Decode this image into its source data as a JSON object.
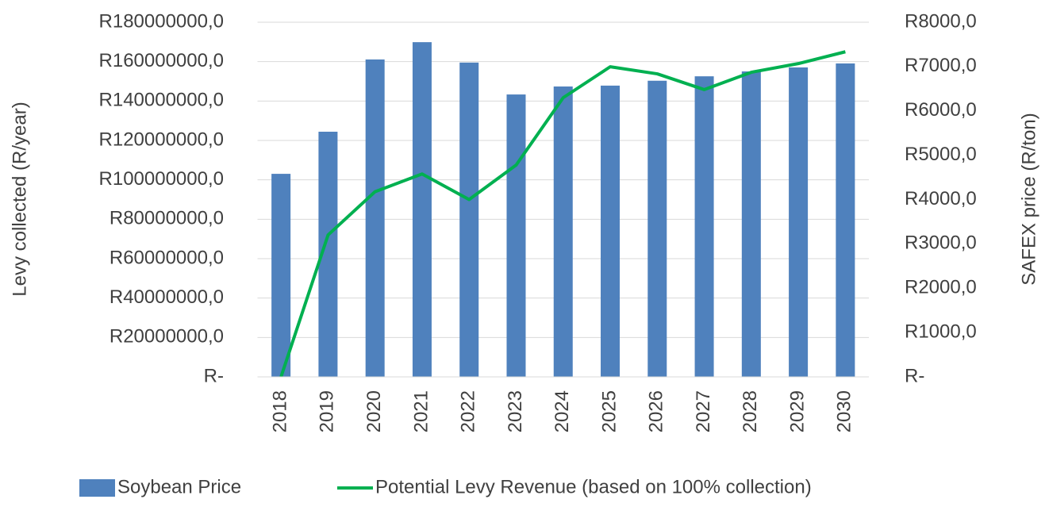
{
  "chart_data": {
    "type": "bar-line",
    "y_label": "Levy collected (R/year)",
    "y2_label": "SAFEX price (R/ton)",
    "categories": [
      "2018",
      "2019",
      "2020",
      "2021",
      "2022",
      "2023",
      "2024",
      "2025",
      "2026",
      "2027",
      "2028",
      "2029",
      "2030"
    ],
    "series": [
      {
        "name": "Soybean Price",
        "type": "bar",
        "axis": "y2",
        "color": "#4f81bd",
        "values": [
          4580,
          5530,
          7160,
          7550,
          7090,
          6370,
          6550,
          6570,
          6680,
          6780,
          6890,
          6980,
          7070
        ]
      },
      {
        "name": "Potential Levy Revenue (based on 100% collection)",
        "type": "line",
        "axis": "y",
        "color": "#00b050",
        "values": [
          0,
          72000000,
          94000000,
          103000000,
          90000000,
          107500000,
          141700000,
          157400000,
          153800000,
          145800000,
          154600000,
          159000000,
          165000000
        ]
      }
    ],
    "ylim": [
      0,
      180000000
    ],
    "yticks": [
      {
        "value": 0,
        "label": "R-"
      },
      {
        "value": 20000000,
        "label": "R20000000,0"
      },
      {
        "value": 40000000,
        "label": "R40000000,0"
      },
      {
        "value": 60000000,
        "label": "R60000000,0"
      },
      {
        "value": 80000000,
        "label": "R80000000,0"
      },
      {
        "value": 100000000,
        "label": "R100000000,0"
      },
      {
        "value": 120000000,
        "label": "R120000000,0"
      },
      {
        "value": 140000000,
        "label": "R140000000,0"
      },
      {
        "value": 160000000,
        "label": "R160000000,0"
      },
      {
        "value": 180000000,
        "label": "R180000000,0"
      }
    ],
    "y2lim": [
      0,
      8000
    ],
    "y2ticks": [
      {
        "value": 0,
        "label": "R-"
      },
      {
        "value": 1000,
        "label": "R1000,0"
      },
      {
        "value": 2000,
        "label": "R2000,0"
      },
      {
        "value": 3000,
        "label": "R3000,0"
      },
      {
        "value": 4000,
        "label": "R4000,0"
      },
      {
        "value": 5000,
        "label": "R5000,0"
      },
      {
        "value": 6000,
        "label": "R6000,0"
      },
      {
        "value": 7000,
        "label": "R7000,0"
      },
      {
        "value": 8000,
        "label": "R8000,0"
      }
    ],
    "grid": true
  }
}
